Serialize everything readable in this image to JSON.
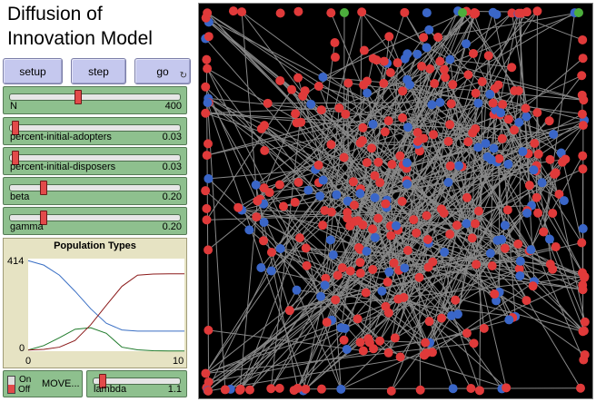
{
  "title_line1": "Diffusion of",
  "title_line2": "Innovation Model",
  "buttons": {
    "setup": "setup",
    "step": "step",
    "go": "go",
    "go_icon": "forever-icon"
  },
  "sliders": [
    {
      "label": "N",
      "value": "400",
      "fraction": 0.4
    },
    {
      "label": "percent-initial-adopters",
      "value": "0.03",
      "fraction": 0.03
    },
    {
      "label": "percent-initial-disposers",
      "value": "0.03",
      "fraction": 0.03
    },
    {
      "label": "beta",
      "value": "0.20",
      "fraction": 0.2
    },
    {
      "label": "gamma",
      "value": "0.20",
      "fraction": 0.2
    }
  ],
  "switch": {
    "on_label": "On",
    "off_label": "Off",
    "name": "MOVE...",
    "state": "off"
  },
  "lambda_slider": {
    "label": "lambda",
    "value": "1.1",
    "fraction": 0.11
  },
  "chart_data": {
    "type": "line",
    "title": "Population Types",
    "xlim": [
      0,
      10
    ],
    "ylim": [
      0,
      414
    ],
    "x_tick_labels": [
      "0",
      "10"
    ],
    "y_tick_labels": [
      "0",
      "414"
    ],
    "x": [
      0,
      1,
      2,
      3,
      4,
      5,
      6,
      7,
      8,
      9,
      10
    ],
    "series": [
      {
        "color": "#3a6fc4",
        "values": [
          405,
          385,
          340,
          268,
          190,
          125,
          95,
          90,
          90,
          90,
          90
        ]
      },
      {
        "color": "#1e7a2a",
        "values": [
          5,
          25,
          60,
          98,
          105,
          80,
          18,
          6,
          2,
          1,
          1
        ]
      },
      {
        "color": "#8b1a1a",
        "values": [
          5,
          8,
          18,
          48,
          118,
          205,
          290,
          340,
          345,
          346,
          346
        ]
      }
    ]
  },
  "world": {
    "background": "#000000",
    "red": "#e03a3a",
    "blue": "#3a66c8",
    "green": "#4cae3c",
    "link": "#888888"
  }
}
